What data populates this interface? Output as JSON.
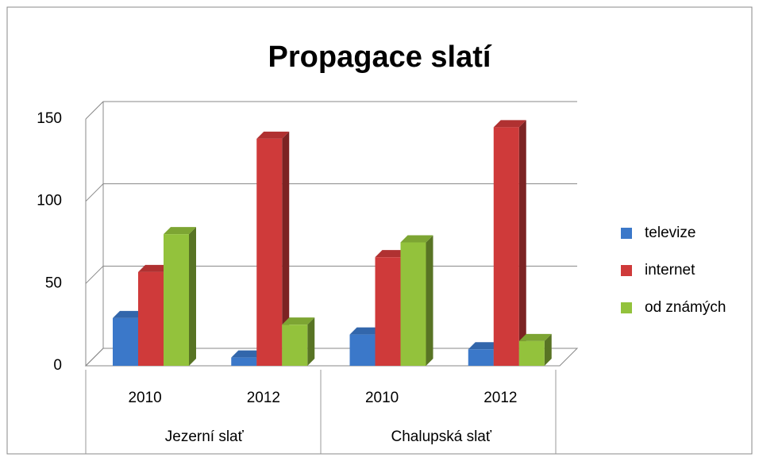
{
  "chart_data": {
    "type": "bar3d",
    "title": "Propagace slatí",
    "categories": [
      "2010",
      "2012",
      "2010",
      "2012"
    ],
    "category_groups": [
      {
        "label": "Jezerní slať",
        "categories": [
          "2010",
          "2012"
        ]
      },
      {
        "label": "Chalupská slať",
        "categories": [
          "2010",
          "2012"
        ]
      }
    ],
    "series": [
      {
        "name": "televize",
        "color": "#3b78c9",
        "values": [
          29,
          5,
          19,
          10
        ]
      },
      {
        "name": "internet",
        "color": "#cf3a3a",
        "values": [
          57,
          138,
          66,
          145
        ]
      },
      {
        "name": "od známých",
        "color": "#93c23c",
        "values": [
          80,
          25,
          75,
          15
        ]
      }
    ],
    "ylim": [
      0,
      150
    ],
    "yticks": [
      0,
      50,
      100,
      150
    ],
    "grid": true,
    "legend": "right"
  }
}
